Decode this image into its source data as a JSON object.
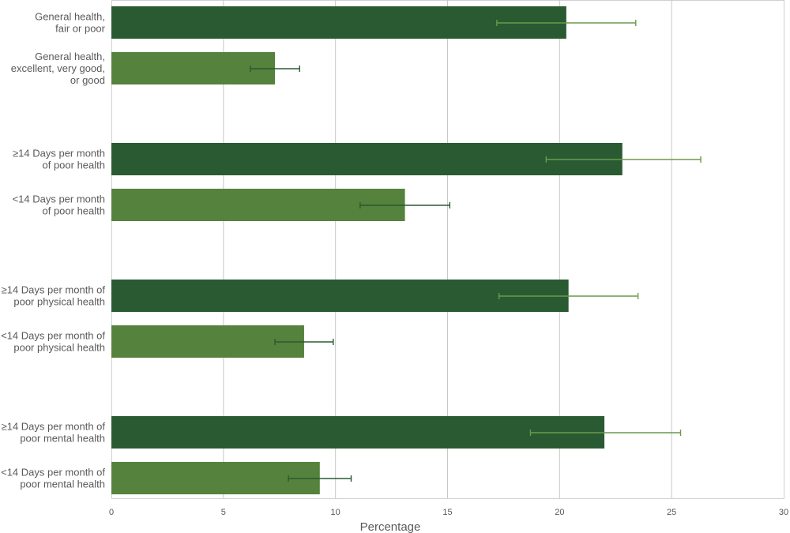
{
  "chart_data": {
    "type": "bar",
    "orientation": "horizontal",
    "xlabel": "Percentage",
    "ylabel": "",
    "xlim": [
      0,
      30
    ],
    "xticks": [
      0,
      5,
      10,
      15,
      20,
      25,
      30
    ],
    "grid": "vertical",
    "legend": "none",
    "colors": {
      "dark": "#2a5a32",
      "light": "#55823c",
      "errorbar_on_dark": "#6a9a4c",
      "errorbar_on_light": "#2a5a32",
      "grid": "#c8c8c8",
      "text": "#595959"
    },
    "groups": [
      {
        "bars": [
          {
            "label": "General health,\nfair or poor",
            "value": 20.3,
            "ci": [
              17.2,
              23.4
            ],
            "shade": "dark"
          },
          {
            "label": "General health,\nexcellent, very good,\nor good",
            "value": 7.3,
            "ci": [
              6.2,
              8.4
            ],
            "shade": "light"
          }
        ]
      },
      {
        "bars": [
          {
            "label": "≥14 Days per month\nof poor health",
            "value": 22.8,
            "ci": [
              19.4,
              26.3
            ],
            "shade": "dark"
          },
          {
            "label": "<14 Days per month\nof poor health",
            "value": 13.1,
            "ci": [
              11.1,
              15.1
            ],
            "shade": "light"
          }
        ]
      },
      {
        "bars": [
          {
            "label": "≥14 Days per month of\npoor physical health",
            "value": 20.4,
            "ci": [
              17.3,
              23.5
            ],
            "shade": "dark"
          },
          {
            "label": "<14 Days per month of\npoor physical health",
            "value": 8.6,
            "ci": [
              7.3,
              9.9
            ],
            "shade": "light"
          }
        ]
      },
      {
        "bars": [
          {
            "label": "≥14 Days per month of\npoor mental health",
            "value": 22.0,
            "ci": [
              18.7,
              25.4
            ],
            "shade": "dark"
          },
          {
            "label": "<14 Days per month of\npoor mental health",
            "value": 9.3,
            "ci": [
              7.9,
              10.7
            ],
            "shade": "light"
          }
        ]
      }
    ]
  }
}
